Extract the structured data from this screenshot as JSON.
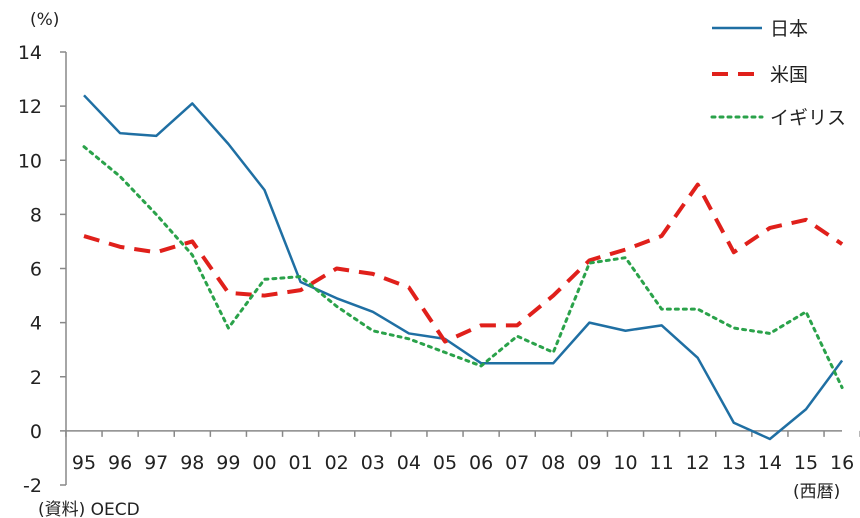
{
  "chart_data": {
    "type": "line",
    "title": "",
    "ylabel": "(%)",
    "xlabel": "(西暦)",
    "source": "(資料) OECD",
    "ylim": [
      -2,
      14
    ],
    "yticks": [
      -2,
      0,
      2,
      4,
      6,
      8,
      10,
      12,
      14
    ],
    "categories": [
      "95",
      "96",
      "97",
      "98",
      "99",
      "00",
      "01",
      "02",
      "03",
      "04",
      "05",
      "06",
      "07",
      "08",
      "09",
      "10",
      "11",
      "12",
      "13",
      "14",
      "15",
      "16"
    ],
    "grid": false,
    "legend_position": "top-right",
    "series": [
      {
        "name": "日本",
        "color": "#1f6fa3",
        "style": "solid",
        "values": [
          12.4,
          11.0,
          10.9,
          12.1,
          10.6,
          8.9,
          5.5,
          4.9,
          4.4,
          3.6,
          3.4,
          2.5,
          2.5,
          2.5,
          4.0,
          3.7,
          3.9,
          2.7,
          0.3,
          -0.3,
          0.8,
          2.6
        ]
      },
      {
        "name": "米国",
        "color": "#e0201b",
        "style": "dashed",
        "values": [
          7.2,
          6.8,
          6.6,
          7.0,
          5.1,
          5.0,
          5.2,
          6.0,
          5.8,
          5.3,
          3.3,
          3.9,
          3.9,
          5.0,
          6.3,
          6.7,
          7.2,
          9.1,
          6.6,
          7.5,
          7.8,
          6.9
        ]
      },
      {
        "name": "イギリス",
        "color": "#2aa24a",
        "style": "dotted",
        "values": [
          10.5,
          9.4,
          8.0,
          6.5,
          3.8,
          5.6,
          5.7,
          4.6,
          3.7,
          3.4,
          2.9,
          2.4,
          3.5,
          2.9,
          6.2,
          6.4,
          4.5,
          4.5,
          3.8,
          3.6,
          4.4,
          1.6
        ]
      }
    ]
  }
}
